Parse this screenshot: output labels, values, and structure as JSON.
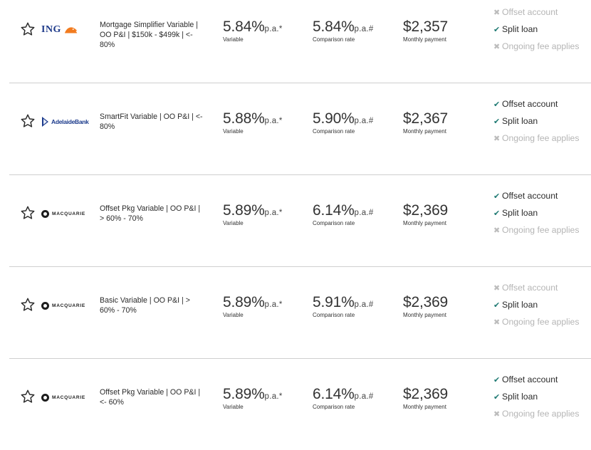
{
  "features_labels": [
    "Offset account",
    "Split loan",
    "Ongoing fee applies"
  ],
  "colors": {
    "check": "#1f7a73",
    "cross": "#bcbcbc",
    "divider": "#cfcfcf"
  },
  "loans": [
    {
      "lender": "ING",
      "logo_icon": "ing-lion-icon",
      "product": "Mortgage Simplifier Variable | OO P&I | $150k - $499k | <- 80%",
      "rate": "5.84%",
      "rate_suffix": "p.a.*",
      "rate_label": "Variable",
      "comparison": "5.84%",
      "comparison_suffix": "p.a.#",
      "comparison_label": "Comparison rate",
      "payment": "$2,357",
      "payment_label": "Monthly payment",
      "features": [
        {
          "label": "Offset account",
          "available": false
        },
        {
          "label": "Split loan",
          "available": true
        },
        {
          "label": "Ongoing fee applies",
          "available": false
        }
      ]
    },
    {
      "lender": "AdelaideBank",
      "logo_icon": "adelaide-bank-icon",
      "product": "SmartFit Variable | OO P&I | <- 80%",
      "rate": "5.88%",
      "rate_suffix": "p.a.*",
      "rate_label": "Variable",
      "comparison": "5.90%",
      "comparison_suffix": "p.a.#",
      "comparison_label": "Comparison rate",
      "payment": "$2,367",
      "payment_label": "Monthly payment",
      "features": [
        {
          "label": "Offset account",
          "available": true
        },
        {
          "label": "Split loan",
          "available": true
        },
        {
          "label": "Ongoing fee applies",
          "available": false
        }
      ]
    },
    {
      "lender": "MACQUARIE",
      "logo_icon": "macquarie-icon",
      "product": "Offset Pkg Variable | OO P&I | > 60% - 70%",
      "rate": "5.89%",
      "rate_suffix": "p.a.*",
      "rate_label": "Variable",
      "comparison": "6.14%",
      "comparison_suffix": "p.a.#",
      "comparison_label": "Comparison rate",
      "payment": "$2,369",
      "payment_label": "Monthly payment",
      "features": [
        {
          "label": "Offset account",
          "available": true
        },
        {
          "label": "Split loan",
          "available": true
        },
        {
          "label": "Ongoing fee applies",
          "available": false
        }
      ]
    },
    {
      "lender": "MACQUARIE",
      "logo_icon": "macquarie-icon",
      "product": "Basic Variable | OO P&I | > 60% - 70%",
      "rate": "5.89%",
      "rate_suffix": "p.a.*",
      "rate_label": "Variable",
      "comparison": "5.91%",
      "comparison_suffix": "p.a.#",
      "comparison_label": "Comparison rate",
      "payment": "$2,369",
      "payment_label": "Monthly payment",
      "features": [
        {
          "label": "Offset account",
          "available": false
        },
        {
          "label": "Split loan",
          "available": true
        },
        {
          "label": "Ongoing fee applies",
          "available": false
        }
      ]
    },
    {
      "lender": "MACQUARIE",
      "logo_icon": "macquarie-icon",
      "product": "Offset Pkg Variable | OO P&I | <- 60%",
      "rate": "5.89%",
      "rate_suffix": "p.a.*",
      "rate_label": "Variable",
      "comparison": "6.14%",
      "comparison_suffix": "p.a.#",
      "comparison_label": "Comparison rate",
      "payment": "$2,369",
      "payment_label": "Monthly payment",
      "features": [
        {
          "label": "Offset account",
          "available": true
        },
        {
          "label": "Split loan",
          "available": true
        },
        {
          "label": "Ongoing fee applies",
          "available": false
        }
      ]
    }
  ]
}
